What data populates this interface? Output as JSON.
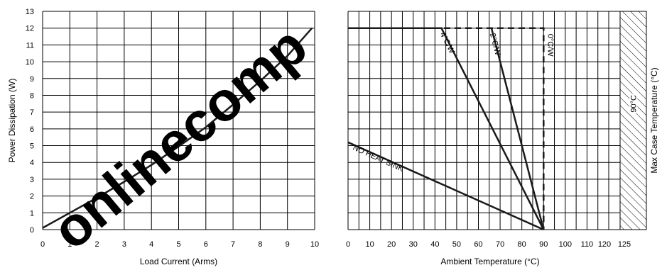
{
  "chart_data": [
    {
      "type": "line",
      "xlabel": "Load Current (Arms)",
      "ylabel": "Power Dissipation (W)",
      "xlim": [
        0,
        10
      ],
      "ylim": [
        0,
        13
      ],
      "xticks": [
        "0",
        "1",
        "2",
        "3",
        "4",
        "5",
        "6",
        "7",
        "8",
        "9",
        "10"
      ],
      "yticks": [
        "0",
        "1",
        "2",
        "3",
        "4",
        "5",
        "6",
        "7",
        "8",
        "9",
        "10",
        "11",
        "12",
        "13"
      ],
      "grid": true,
      "series": [
        {
          "points": [
            [
              0,
              0.1
            ],
            [
              1,
              1.0
            ],
            [
              2,
              1.9
            ],
            [
              3,
              2.85
            ],
            [
              4,
              3.85
            ],
            [
              5,
              4.95
            ],
            [
              6,
              6.1
            ],
            [
              7,
              7.45
            ],
            [
              8,
              8.85
            ],
            [
              9,
              10.35
            ],
            [
              9.9,
              12.0
            ]
          ]
        }
      ]
    },
    {
      "type": "line",
      "xlabel": "Ambient Temperature (°C)",
      "ylabel": "Max Case Temperature (°C)",
      "xlim": [
        0,
        125
      ],
      "ylim": [
        0,
        13
      ],
      "xticks": [
        "0",
        "10",
        "20",
        "30",
        "40",
        "50",
        "60",
        "70",
        "80",
        "90",
        "100",
        "110",
        "120",
        "125"
      ],
      "grid": true,
      "hatched_region_label": "90°C",
      "series": [
        {
          "name": "NO HEAT SINK",
          "points": [
            [
              0,
              5.2
            ],
            [
              90,
              0
            ]
          ]
        },
        {
          "name": "4°C/W",
          "points": [
            [
              0,
              12
            ],
            [
              43,
              12
            ],
            [
              90,
              0
            ]
          ]
        },
        {
          "name": "2°C/W",
          "points": [
            [
              66,
              12
            ],
            [
              90,
              0
            ]
          ]
        },
        {
          "name": "0°C/W",
          "style": "dashed",
          "points": [
            [
              0,
              12
            ],
            [
              90,
              12
            ],
            [
              90,
              0
            ]
          ]
        }
      ]
    }
  ],
  "watermark": "onlinecomp"
}
